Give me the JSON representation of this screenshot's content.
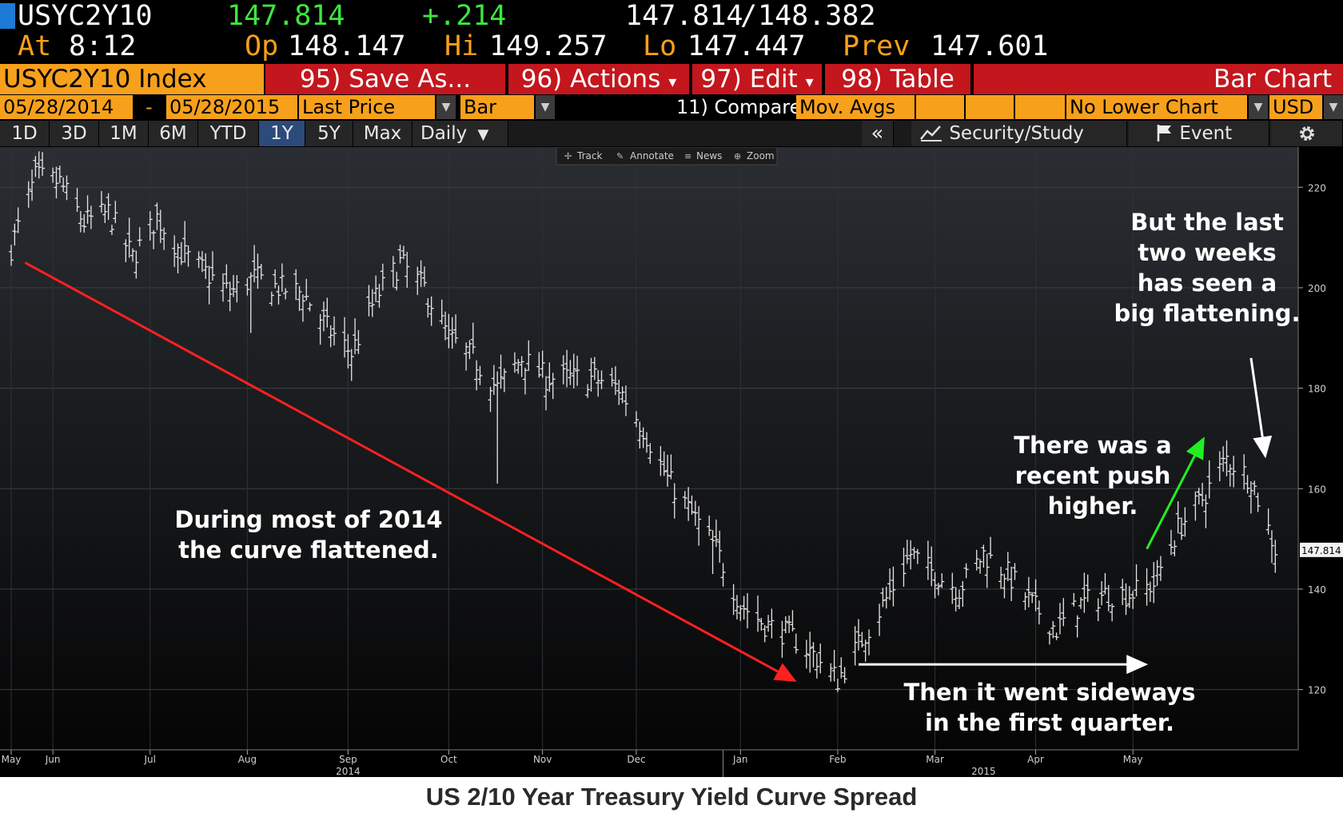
{
  "quote": {
    "ticker": "USYC2Y10",
    "last": "147.814",
    "change": "+.214",
    "bid": "147.814",
    "separator": "/",
    "ask": "148.382",
    "at_label": "At",
    "time": "8:12",
    "open_label": "Op",
    "open": "148.147",
    "high_label": "Hi",
    "high": "149.257",
    "low_label": "Lo",
    "low": "147.447",
    "prev_label": "Prev",
    "prev": "147.601"
  },
  "toolbar": {
    "index_label": "USYC2Y10 Index",
    "save_as": "95) Save As...",
    "actions": "96) Actions",
    "edit": "97) Edit",
    "table": "98) Table",
    "chart_type_title": "Bar Chart",
    "caret": "▾"
  },
  "settings": {
    "start_date": "05/28/2014",
    "dash": "-",
    "end_date": "05/28/2015",
    "field": "Last Price",
    "style": "Bar",
    "compare": "11) Compare",
    "mov_avgs": "Mov. Avgs",
    "lower_chart": "No Lower Chart",
    "currency": "USD",
    "dropdown_arrow": "▼"
  },
  "range_bar": {
    "ranges": [
      "1D",
      "3D",
      "1M",
      "6M",
      "YTD",
      "1Y",
      "5Y",
      "Max"
    ],
    "selected": "1Y",
    "periodicity": "Daily",
    "collapse": "«",
    "security_study": "Security/Study",
    "event": "Event"
  },
  "chart_toolbar": {
    "track": "Track",
    "annotate": "Annotate",
    "news": "News",
    "zoom": "Zoom"
  },
  "chart_data": {
    "type": "bar",
    "ylim": [
      108,
      228
    ],
    "grid": true,
    "y_ticks": [
      120,
      140,
      160,
      180,
      200,
      220
    ],
    "x_ticks": [
      {
        "label": "May",
        "date": "2014-05-28"
      },
      {
        "label": "Jun",
        "date": "2014-06-09"
      },
      {
        "label": "Jul",
        "date": "2014-07-07"
      },
      {
        "label": "Aug",
        "date": "2014-08-04"
      },
      {
        "label": "Sep",
        "date": "2014-09-02"
      },
      {
        "label": "Oct",
        "date": "2014-10-01"
      },
      {
        "label": "Nov",
        "date": "2014-10-28"
      },
      {
        "label": "Dec",
        "date": "2014-11-24"
      },
      {
        "label": "Jan",
        "date": "2014-12-24"
      },
      {
        "label": "Feb",
        "date": "2015-01-21"
      },
      {
        "label": "Mar",
        "date": "2015-02-18"
      },
      {
        "label": "Apr",
        "date": "2015-03-19"
      },
      {
        "label": "May",
        "date": "2015-04-16"
      }
    ],
    "year_labels": [
      {
        "label": "2014",
        "date": "2014-09-02"
      },
      {
        "label": "2015",
        "date": "2015-03-04"
      }
    ],
    "year_divider_date": "2014-12-19",
    "series_name": "USYC2Y10 Index",
    "last_price": 147.814,
    "last_price_label": "147.814",
    "daily_close": [
      {
        "date": "2014-05-28",
        "close": 208
      },
      {
        "date": "2014-06-04",
        "close": 222
      },
      {
        "date": "2014-06-11",
        "close": 221
      },
      {
        "date": "2014-06-18",
        "close": 213
      },
      {
        "date": "2014-06-25",
        "close": 215
      },
      {
        "date": "2014-07-02",
        "close": 206
      },
      {
        "date": "2014-07-09",
        "close": 214
      },
      {
        "date": "2014-07-16",
        "close": 207
      },
      {
        "date": "2014-07-23",
        "close": 203
      },
      {
        "date": "2014-07-30",
        "close": 199
      },
      {
        "date": "2014-08-06",
        "close": 202
      },
      {
        "date": "2014-08-13",
        "close": 200
      },
      {
        "date": "2014-08-20",
        "close": 199
      },
      {
        "date": "2014-08-27",
        "close": 192
      },
      {
        "date": "2014-09-03",
        "close": 187
      },
      {
        "date": "2014-09-10",
        "close": 198
      },
      {
        "date": "2014-09-17",
        "close": 205
      },
      {
        "date": "2014-09-24",
        "close": 200
      },
      {
        "date": "2014-10-01",
        "close": 190
      },
      {
        "date": "2014-10-08",
        "close": 186
      },
      {
        "date": "2014-10-15",
        "close": 180
      },
      {
        "date": "2014-10-22",
        "close": 186
      },
      {
        "date": "2014-10-29",
        "close": 182
      },
      {
        "date": "2014-11-05",
        "close": 182
      },
      {
        "date": "2014-11-12",
        "close": 182
      },
      {
        "date": "2014-11-19",
        "close": 180
      },
      {
        "date": "2014-11-26",
        "close": 172
      },
      {
        "date": "2014-12-03",
        "close": 162
      },
      {
        "date": "2014-12-10",
        "close": 155
      },
      {
        "date": "2014-12-17",
        "close": 148
      },
      {
        "date": "2014-12-24",
        "close": 137
      },
      {
        "date": "2014-12-31",
        "close": 133
      },
      {
        "date": "2015-01-07",
        "close": 131
      },
      {
        "date": "2015-01-14",
        "close": 127
      },
      {
        "date": "2015-01-21",
        "close": 122
      },
      {
        "date": "2015-01-28",
        "close": 130
      },
      {
        "date": "2015-02-04",
        "close": 138
      },
      {
        "date": "2015-02-11",
        "close": 147
      },
      {
        "date": "2015-02-18",
        "close": 143
      },
      {
        "date": "2015-02-25",
        "close": 140
      },
      {
        "date": "2015-03-04",
        "close": 147
      },
      {
        "date": "2015-03-11",
        "close": 143
      },
      {
        "date": "2015-03-18",
        "close": 137
      },
      {
        "date": "2015-03-25",
        "close": 132
      },
      {
        "date": "2015-04-01",
        "close": 137
      },
      {
        "date": "2015-04-08",
        "close": 139
      },
      {
        "date": "2015-04-15",
        "close": 139
      },
      {
        "date": "2015-04-22",
        "close": 141
      },
      {
        "date": "2015-04-29",
        "close": 152
      },
      {
        "date": "2015-05-06",
        "close": 158
      },
      {
        "date": "2015-05-13",
        "close": 166
      },
      {
        "date": "2015-05-20",
        "close": 162
      },
      {
        "date": "2015-05-27",
        "close": 148
      }
    ],
    "annotations": [
      {
        "text": "During most of 2014\nthe curve flattened.",
        "color": "#ffffff"
      },
      {
        "text": "Then it went sideways\nin the first quarter.",
        "color": "#ffffff"
      },
      {
        "text": "There was a\nrecent push\nhigher.",
        "color": "#ffffff"
      },
      {
        "text": "But the last\ntwo weeks\nhas seen a\nbig flattening.",
        "color": "#ffffff"
      }
    ],
    "arrows": [
      {
        "name": "flattening-trend-arrow",
        "color": "#ff2020",
        "from": {
          "date": "2014-06-01",
          "value": 205
        },
        "to": {
          "date": "2015-01-08",
          "value": 122
        }
      },
      {
        "name": "sideways-arrow",
        "color": "#ffffff",
        "from": {
          "date": "2015-01-27",
          "value": 125
        },
        "to": {
          "date": "2015-04-19",
          "value": 125
        }
      },
      {
        "name": "push-higher-arrow",
        "color": "#22ee22",
        "from": {
          "date": "2015-04-20",
          "value": 148
        },
        "to": {
          "date": "2015-05-06",
          "value": 169.5
        }
      },
      {
        "name": "last-two-weeks-arrow",
        "color": "#ffffff",
        "from": {
          "date": "2015-05-20",
          "value": 186
        },
        "to": {
          "date": "2015-05-24",
          "value": 167
        }
      }
    ]
  },
  "colors": {
    "amber": "#f7a01b",
    "red_bar": "#c4161d",
    "chart_bg_top": "#2a2e33",
    "chart_bg_bottom": "#050505",
    "price_bars": "#e6e6e6"
  },
  "caption": "US 2/10 Year Treasury Yield Curve Spread"
}
